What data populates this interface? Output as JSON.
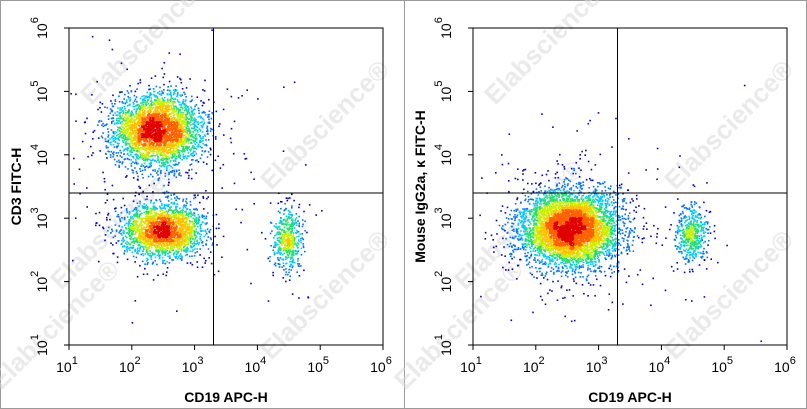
{
  "chart_data": [
    {
      "type": "scatter",
      "style": "pseudocolor density dot plot",
      "xlabel": "CD19 APC-H",
      "ylabel": "CD3 FITC-H",
      "x_scale": "log",
      "y_scale": "log",
      "xlim": [
        10,
        1000000
      ],
      "ylim": [
        10,
        1000000
      ],
      "x_ticks": [
        {
          "base": "10",
          "exp": "1"
        },
        {
          "base": "10",
          "exp": "2"
        },
        {
          "base": "10",
          "exp": "3"
        },
        {
          "base": "10",
          "exp": "4"
        },
        {
          "base": "10",
          "exp": "5"
        },
        {
          "base": "10",
          "exp": "6"
        }
      ],
      "y_ticks": [
        {
          "base": "10",
          "exp": "1"
        },
        {
          "base": "10",
          "exp": "2"
        },
        {
          "base": "10",
          "exp": "3"
        },
        {
          "base": "10",
          "exp": "4"
        },
        {
          "base": "10",
          "exp": "5"
        },
        {
          "base": "10",
          "exp": "6"
        }
      ],
      "quadrant_gate": {
        "x": 2000,
        "y": 2500
      },
      "populations": [
        {
          "x_center": 250,
          "y_center": 25000,
          "x_spread_decades": 0.35,
          "y_spread_decades": 0.28,
          "count": 3400
        },
        {
          "x_center": 300,
          "y_center": 650,
          "x_spread_decades": 0.32,
          "y_spread_decades": 0.22,
          "count": 2300
        },
        {
          "x_center": 30000,
          "y_center": 500,
          "x_spread_decades": 0.12,
          "y_spread_decades": 0.25,
          "count": 500
        }
      ],
      "watermark": "Elabscience®"
    },
    {
      "type": "scatter",
      "style": "pseudocolor density dot plot",
      "xlabel": "CD19 APC-H",
      "ylabel": "Mouse IgG2a, κ  FITC-H",
      "x_scale": "log",
      "y_scale": "log",
      "xlim": [
        10,
        1000000
      ],
      "ylim": [
        10,
        1000000
      ],
      "x_ticks": [
        {
          "base": "10",
          "exp": "1"
        },
        {
          "base": "10",
          "exp": "2"
        },
        {
          "base": "10",
          "exp": "3"
        },
        {
          "base": "10",
          "exp": "4"
        },
        {
          "base": "10",
          "exp": "5"
        },
        {
          "base": "10",
          "exp": "6"
        }
      ],
      "y_ticks": [
        {
          "base": "10",
          "exp": "1"
        },
        {
          "base": "10",
          "exp": "2"
        },
        {
          "base": "10",
          "exp": "3"
        },
        {
          "base": "10",
          "exp": "4"
        },
        {
          "base": "10",
          "exp": "5"
        },
        {
          "base": "10",
          "exp": "6"
        }
      ],
      "quadrant_gate": {
        "x": 2000,
        "y": 2500
      },
      "populations": [
        {
          "x_center": 350,
          "y_center": 700,
          "x_spread_decades": 0.38,
          "y_spread_decades": 0.3,
          "count": 5200
        },
        {
          "x_center": 30000,
          "y_center": 550,
          "x_spread_decades": 0.12,
          "y_spread_decades": 0.22,
          "count": 500
        }
      ],
      "watermark": "Elabscience®"
    }
  ],
  "density_colors": [
    "#0000c8",
    "#0070ff",
    "#00c8ff",
    "#20e070",
    "#c8f000",
    "#ffc000",
    "#ff6000",
    "#e00000"
  ]
}
